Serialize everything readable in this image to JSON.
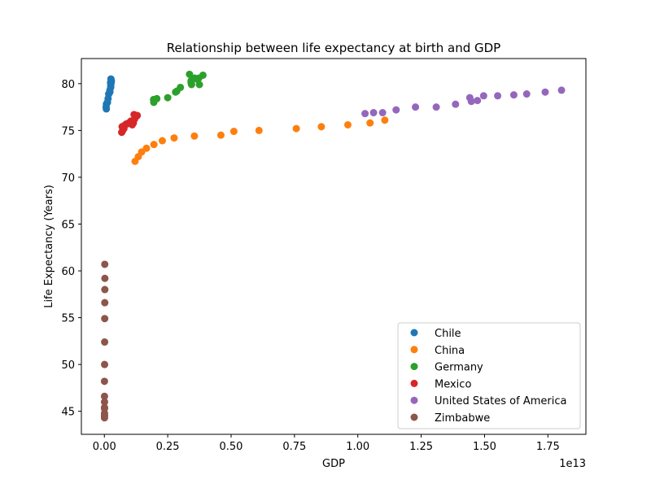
{
  "chart_data": {
    "type": "scatter",
    "title": "Relationship between life expectancy at birth and GDP",
    "xlabel": "GDP",
    "ylabel": "Life Expectancy (Years)",
    "x_offset_label": "1e13",
    "x_scale": 10000000000000.0,
    "xlim": [
      -0.0907,
      1.8999
    ],
    "ylim": [
      42.54,
      82.68
    ],
    "x_ticks": [
      0.0,
      0.25,
      0.5,
      0.75,
      1.0,
      1.25,
      1.5,
      1.75
    ],
    "x_tick_labels": [
      "0.00",
      "0.25",
      "0.50",
      "0.75",
      "1.00",
      "1.25",
      "1.50",
      "1.75"
    ],
    "y_ticks": [
      45,
      50,
      55,
      60,
      65,
      70,
      75,
      80
    ],
    "y_tick_labels": [
      "45",
      "50",
      "55",
      "60",
      "65",
      "70",
      "75",
      "80"
    ],
    "grid": false,
    "legend_position": "bottom-right",
    "series": [
      {
        "name": "Chile",
        "color": "#1f77b4",
        "points": [
          [
            0.0078,
            77.3
          ],
          [
            0.0069,
            77.5
          ],
          [
            0.008,
            77.8
          ],
          [
            0.0099,
            77.9
          ],
          [
            0.0123,
            78.0
          ],
          [
            0.0146,
            78.4
          ],
          [
            0.0173,
            78.9
          ],
          [
            0.0172,
            78.9
          ],
          [
            0.0218,
            79.1
          ],
          [
            0.025,
            79.6
          ],
          [
            0.0217,
            79.3
          ],
          [
            0.0252,
            79.8
          ],
          [
            0.0269,
            80.1
          ],
          [
            0.0278,
            80.3
          ],
          [
            0.0259,
            80.5
          ],
          [
            0.0243,
            80.1
          ]
        ]
      },
      {
        "name": "China",
        "color": "#ff7f0e",
        "points": [
          [
            0.1211,
            71.7
          ],
          [
            0.1339,
            72.2
          ],
          [
            0.1471,
            72.7
          ],
          [
            0.166,
            73.1
          ],
          [
            0.1955,
            73.5
          ],
          [
            0.2286,
            73.9
          ],
          [
            0.2752,
            74.2
          ],
          [
            0.3552,
            74.4
          ],
          [
            0.4598,
            74.5
          ],
          [
            0.511,
            74.9
          ],
          [
            0.6101,
            75.0
          ],
          [
            0.7573,
            75.2
          ],
          [
            0.8561,
            75.4
          ],
          [
            0.9607,
            75.6
          ],
          [
            1.0482,
            75.8
          ],
          [
            1.1065,
            76.1
          ]
        ]
      },
      {
        "name": "Germany",
        "color": "#2ca02c",
        "points": [
          [
            0.195,
            78.0
          ],
          [
            0.194,
            78.3
          ],
          [
            0.207,
            78.4
          ],
          [
            0.25,
            78.5
          ],
          [
            0.281,
            79.1
          ],
          [
            0.286,
            79.2
          ],
          [
            0.3,
            79.6
          ],
          [
            0.344,
            79.9
          ],
          [
            0.375,
            79.9
          ],
          [
            0.342,
            80.3
          ],
          [
            0.342,
            80.1
          ],
          [
            0.356,
            80.6
          ],
          [
            0.363,
            80.5
          ],
          [
            0.373,
            80.6
          ],
          [
            0.389,
            80.9
          ],
          [
            0.336,
            81.0
          ]
        ]
      },
      {
        "name": "Mexico",
        "color": "#d62728",
        "points": [
          [
            0.0684,
            74.8
          ],
          [
            0.0725,
            75.0
          ],
          [
            0.0772,
            75.2
          ],
          [
            0.07,
            75.4
          ],
          [
            0.077,
            75.5
          ],
          [
            0.0866,
            75.7
          ],
          [
            0.0965,
            75.8
          ],
          [
            0.1043,
            76.0
          ],
          [
            0.1101,
            75.6
          ],
          [
            0.09,
            75.7
          ],
          [
            0.1052,
            75.9
          ],
          [
            0.1171,
            76.7
          ],
          [
            0.1187,
            76.2
          ],
          [
            0.1262,
            76.5
          ],
          [
            0.1298,
            76.6
          ],
          [
            0.1144,
            75.8
          ]
        ]
      },
      {
        "name": "United States of America",
        "color": "#9467bd",
        "points": [
          [
            1.0285,
            76.8
          ],
          [
            1.0622,
            76.9
          ],
          [
            1.0978,
            76.9
          ],
          [
            1.1511,
            77.2
          ],
          [
            1.2275,
            77.5
          ],
          [
            1.3094,
            77.5
          ],
          [
            1.3856,
            77.8
          ],
          [
            1.4478,
            78.1
          ],
          [
            1.4719,
            78.2
          ],
          [
            1.4419,
            78.5
          ],
          [
            1.4964,
            78.7
          ],
          [
            1.5518,
            78.7
          ],
          [
            1.6155,
            78.8
          ],
          [
            1.6663,
            78.9
          ],
          [
            1.7393,
            79.1
          ],
          [
            1.8037,
            79.3
          ]
        ]
      },
      {
        "name": "Zimbabwe",
        "color": "#8c564b",
        "points": [
          [
            0.00067,
            46.0
          ],
          [
            0.00064,
            45.3
          ],
          [
            0.0006,
            44.8
          ],
          [
            0.00057,
            44.5
          ],
          [
            0.00056,
            44.3
          ],
          [
            0.00057,
            44.6
          ],
          [
            0.00054,
            45.4
          ],
          [
            0.00053,
            46.6
          ],
          [
            0.00044,
            48.2
          ],
          [
            0.00091,
            50.0
          ],
          [
            0.00114,
            52.4
          ],
          [
            0.00142,
            54.9
          ],
          [
            0.00171,
            56.6
          ],
          [
            0.00191,
            58.0
          ],
          [
            0.00203,
            59.2
          ],
          [
            0.00163,
            60.7
          ]
        ]
      }
    ]
  }
}
